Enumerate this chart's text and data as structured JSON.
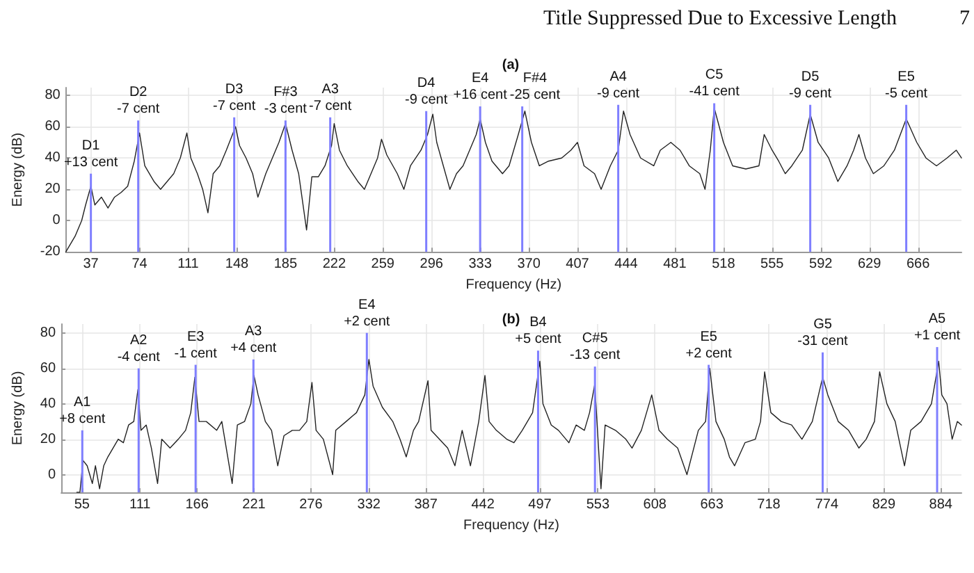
{
  "chart_data": [
    {
      "type": "line",
      "title": "(a)",
      "xlabel": "Frequency (Hz)",
      "ylabel": "Energy (dB)",
      "annotations": [
        "Title Suppressed Due to Excessive Length",
        "7"
      ],
      "xlim": [
        18,
        699
      ],
      "ylim": [
        -20,
        85
      ],
      "xticks": [
        37,
        74,
        111,
        148,
        185,
        222,
        259,
        296,
        333,
        370,
        407,
        444,
        481,
        518,
        555,
        592,
        629,
        666
      ],
      "yticks": [
        -20,
        0,
        20,
        40,
        60,
        80
      ],
      "grid": true,
      "series": [
        {
          "color": "#222222",
          "x": [
            18,
            25,
            30,
            33,
            37,
            40,
            45,
            50,
            55,
            60,
            65,
            70,
            74,
            78,
            85,
            90,
            95,
            100,
            105,
            110,
            113,
            118,
            122,
            126,
            130,
            135,
            140,
            147,
            150,
            155,
            160,
            164,
            170,
            175,
            180,
            185,
            190,
            195,
            201,
            205,
            210,
            215,
            220,
            222,
            226,
            232,
            240,
            245,
            250,
            255,
            258,
            262,
            270,
            275,
            280,
            288,
            293,
            297,
            300,
            305,
            310,
            315,
            320,
            325,
            330,
            333,
            337,
            342,
            350,
            355,
            362,
            367,
            372,
            378,
            385,
            395,
            402,
            407,
            412,
            420,
            425,
            432,
            438,
            442,
            447,
            455,
            465,
            470,
            478,
            485,
            492,
            500,
            504,
            508,
            511,
            518,
            525,
            535,
            545,
            549,
            555,
            560,
            565,
            570,
            578,
            584,
            590,
            598,
            605,
            612,
            617,
            621,
            626,
            632,
            640,
            648,
            657,
            665,
            672,
            680,
            688,
            695,
            699
          ],
          "values": [
            -20,
            -10,
            0,
            10,
            22,
            10,
            15,
            8,
            15,
            18,
            22,
            38,
            56,
            35,
            25,
            20,
            25,
            30,
            40,
            56,
            40,
            30,
            20,
            5,
            30,
            35,
            45,
            60,
            48,
            40,
            30,
            15,
            30,
            40,
            50,
            62,
            45,
            30,
            -6,
            28,
            28,
            35,
            48,
            62,
            45,
            35,
            25,
            20,
            30,
            40,
            52,
            42,
            30,
            20,
            35,
            45,
            55,
            68,
            50,
            35,
            20,
            30,
            35,
            45,
            55,
            65,
            50,
            38,
            30,
            35,
            55,
            70,
            50,
            35,
            38,
            40,
            45,
            50,
            35,
            30,
            20,
            35,
            45,
            70,
            55,
            40,
            35,
            45,
            50,
            45,
            35,
            30,
            20,
            45,
            72,
            50,
            35,
            33,
            35,
            55,
            45,
            38,
            30,
            35,
            45,
            68,
            50,
            40,
            25,
            35,
            45,
            55,
            40,
            30,
            35,
            45,
            65,
            50,
            40,
            35,
            40,
            45,
            40
          ]
        },
        {
          "type": "bar",
          "color": "#7f7fff",
          "x": [
            37,
            73,
            146,
            185,
            219,
            292,
            333,
            365,
            438,
            511,
            584,
            657
          ],
          "base": [
            -20,
            -20,
            -20,
            -20,
            -20,
            -20,
            -20,
            -20,
            -20,
            -20,
            -20,
            -20
          ],
          "values": [
            50,
            84,
            86,
            84,
            86,
            90,
            93,
            93,
            94,
            95,
            94,
            94
          ],
          "value_labels": [
            "D1\n+13 cent",
            "D2\n-7 cent",
            "D3\n-7 cent",
            "F#3\n-3 cent",
            "A3\n-7 cent",
            "D4\n-9 cent",
            "E4\n+16 cent",
            "F#4\n-25 cent",
            "A4\n-9 cent",
            "C5\n-41 cent",
            "D5\n-9 cent",
            "E5\n-5 cent"
          ]
        }
      ]
    },
    {
      "type": "line",
      "title": "(b)",
      "xlabel": "Frequency (Hz)",
      "ylabel": "Energy (dB)",
      "xlim": [
        35,
        904
      ],
      "ylim": [
        -10,
        85
      ],
      "xticks": [
        55,
        111,
        166,
        221,
        276,
        332,
        387,
        442,
        497,
        553,
        608,
        663,
        718,
        774,
        829,
        884
      ],
      "yticks": [
        0,
        20,
        40,
        60,
        80
      ],
      "grid": true,
      "series": [
        {
          "color": "#222222",
          "x": [
            50,
            53,
            56,
            60,
            65,
            68,
            72,
            76,
            80,
            85,
            90,
            95,
            100,
            105,
            109,
            112,
            117,
            122,
            128,
            132,
            140,
            148,
            155,
            160,
            164,
            168,
            175,
            185,
            190,
            200,
            205,
            212,
            218,
            221,
            225,
            232,
            238,
            244,
            250,
            258,
            265,
            272,
            277,
            281,
            288,
            297,
            300,
            310,
            320,
            328,
            332,
            336,
            345,
            355,
            362,
            368,
            375,
            380,
            389,
            392,
            400,
            408,
            415,
            422,
            430,
            438,
            444,
            448,
            455,
            465,
            472,
            480,
            490,
            497,
            500,
            508,
            515,
            525,
            532,
            540,
            545,
            550,
            556,
            560,
            570,
            580,
            586,
            595,
            600,
            605,
            612,
            620,
            630,
            639,
            650,
            657,
            661,
            667,
            675,
            680,
            685,
            695,
            705,
            710,
            714,
            720,
            730,
            740,
            750,
            760,
            770,
            775,
            785,
            795,
            805,
            812,
            820,
            825,
            832,
            840,
            849,
            855,
            865,
            875,
            882,
            885,
            890,
            895,
            900,
            904
          ],
          "values": [
            -10,
            -10,
            8,
            5,
            -5,
            5,
            -8,
            5,
            10,
            15,
            20,
            18,
            28,
            30,
            48,
            25,
            28,
            15,
            -5,
            20,
            15,
            20,
            25,
            35,
            55,
            30,
            30,
            25,
            30,
            -5,
            28,
            30,
            40,
            56,
            45,
            30,
            25,
            5,
            22,
            25,
            25,
            30,
            52,
            25,
            20,
            0,
            25,
            30,
            35,
            45,
            65,
            50,
            38,
            30,
            20,
            10,
            25,
            30,
            53,
            25,
            20,
            15,
            5,
            25,
            5,
            30,
            56,
            30,
            25,
            20,
            18,
            25,
            35,
            64,
            40,
            28,
            25,
            18,
            28,
            25,
            35,
            51,
            -8,
            28,
            25,
            20,
            15,
            25,
            35,
            45,
            25,
            20,
            15,
            0,
            25,
            30,
            60,
            30,
            20,
            10,
            5,
            18,
            20,
            30,
            58,
            35,
            30,
            28,
            20,
            30,
            55,
            45,
            30,
            25,
            15,
            20,
            30,
            58,
            40,
            30,
            5,
            25,
            30,
            40,
            64,
            45,
            40,
            20,
            30,
            28
          ]
        },
        {
          "type": "bar",
          "color": "#7f7fff",
          "x": [
            55.3,
            109.7,
            164.7,
            220.5,
            330,
            495.3,
            550.2,
            660,
            770,
            880.5
          ],
          "base": [
            -10,
            -10,
            -10,
            -10,
            -10,
            -10,
            -10,
            -10,
            -10,
            -10
          ],
          "values": [
            35,
            70,
            72,
            75,
            90,
            80,
            71,
            72,
            79,
            82
          ],
          "value_labels": [
            "A1\n+8 cent",
            "A2\n-4 cent",
            "E3\n-1 cent",
            "A3\n+4 cent",
            "E4\n+2 cent",
            "B4\n+5 cent",
            "C#5\n-13 cent",
            "E5\n+2 cent",
            "G5\n-31 cent",
            "A5\n+1 cent"
          ]
        }
      ]
    }
  ]
}
